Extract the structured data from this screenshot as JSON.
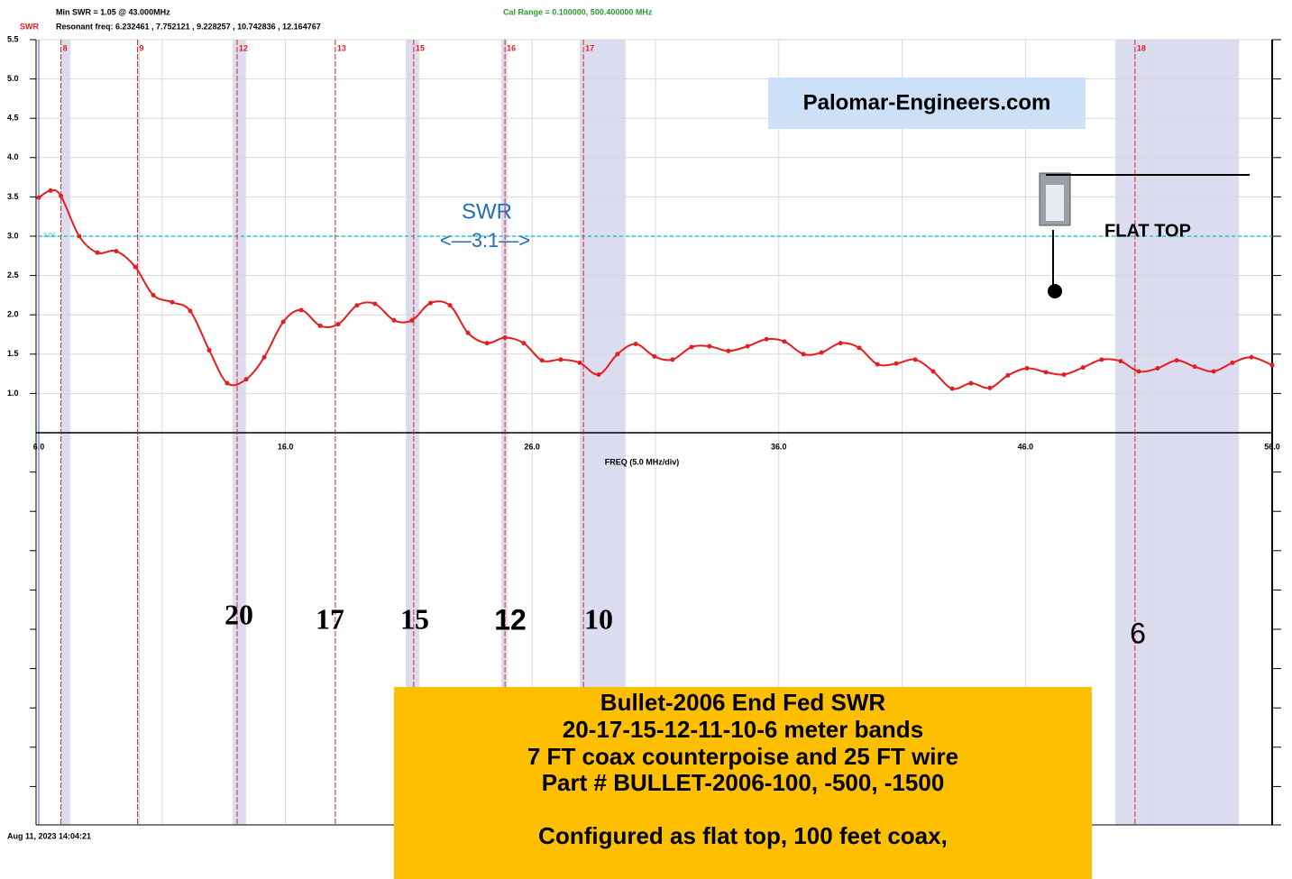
{
  "header": {
    "min_swr": "Min SWR =  1.05 @  43.000MHz",
    "resonant": "Resonant freq:  6.232461 , 7.752121 , 9.228257 , 10.742836 , 12.164767",
    "cal_range": "Cal Range = 0.100000,  500.400000 MHz",
    "timestamp": "Aug 11, 2023  14:04:21"
  },
  "chart_data": {
    "type": "line",
    "y_label": "SWR",
    "x_label": "FREQ (5.0 MHz/div)",
    "x": [
      6.0,
      6.48,
      6.9,
      7.64,
      8.38,
      9.14,
      9.91,
      10.64,
      11.41,
      12.14,
      12.91,
      13.64,
      14.41,
      15.14,
      15.91,
      16.64,
      17.41,
      18.14,
      18.9,
      19.63,
      20.4,
      21.13,
      21.88,
      22.67,
      23.4,
      24.17,
      24.9,
      25.66,
      26.4,
      27.16,
      27.93,
      28.7,
      29.46,
      30.2,
      30.96,
      31.69,
      32.46,
      33.19,
      33.96,
      34.73,
      35.5,
      36.23,
      37.0,
      37.73,
      38.5,
      39.26,
      40.0,
      40.76,
      41.53,
      42.26,
      43.03,
      43.79,
      44.56,
      45.29,
      46.06,
      46.83,
      47.56,
      48.33,
      49.09,
      49.86,
      50.59,
      51.36,
      52.13,
      52.86,
      53.63,
      54.39,
      55.16,
      56.0
    ],
    "values": [
      3.49,
      3.58,
      3.51,
      3.0,
      2.79,
      2.81,
      2.61,
      2.25,
      2.16,
      2.05,
      1.55,
      1.13,
      1.18,
      1.46,
      1.91,
      2.06,
      1.86,
      1.88,
      2.12,
      2.14,
      1.93,
      1.93,
      2.15,
      2.12,
      1.77,
      1.64,
      1.71,
      1.64,
      1.42,
      1.43,
      1.39,
      1.24,
      1.5,
      1.63,
      1.47,
      1.43,
      1.59,
      1.6,
      1.54,
      1.6,
      1.69,
      1.66,
      1.5,
      1.52,
      1.64,
      1.58,
      1.37,
      1.38,
      1.43,
      1.28,
      1.06,
      1.13,
      1.07,
      1.23,
      1.32,
      1.27,
      1.24,
      1.33,
      1.43,
      1.41,
      1.28,
      1.32,
      1.42,
      1.34,
      1.28,
      1.39,
      1.46,
      1.36
    ],
    "color": "#e41e1e",
    "xlim": [
      6,
      56
    ],
    "ylim": [
      0.5,
      5.5
    ],
    "xticks": [
      {
        "value": 6,
        "label": "6.0"
      },
      {
        "value": 16,
        "label": "16.0"
      },
      {
        "value": 26,
        "label": "26.0"
      },
      {
        "value": 36,
        "label": "36.0"
      },
      {
        "value": 46,
        "label": "46.0"
      },
      {
        "value": 56,
        "label": "56.0"
      }
    ],
    "x_minor_ticks": [
      11,
      21,
      31,
      41,
      51
    ],
    "yticks": [
      {
        "value": 1,
        "label": "1.0"
      },
      {
        "value": 1.5,
        "label": "1.5"
      },
      {
        "value": 2,
        "label": "2.0"
      },
      {
        "value": 2.5,
        "label": "2.5"
      },
      {
        "value": 3,
        "label": "3.0"
      },
      {
        "value": 3.5,
        "label": "3.5"
      },
      {
        "value": 4,
        "label": "4.0"
      },
      {
        "value": 4.5,
        "label": "4.5"
      },
      {
        "value": 5,
        "label": "5.0"
      },
      {
        "value": 5.5,
        "label": "5.5"
      }
    ],
    "grid": true,
    "reference_line": {
      "value": 3,
      "label": "3.00",
      "color": "#22c8d8"
    },
    "marker_color": "#e41e1e",
    "markers": [
      {
        "label": "8",
        "x": 6.9
      },
      {
        "label": "9",
        "x": 10.0
      },
      {
        "label": "12",
        "x": 14.04
      },
      {
        "label": "13",
        "x": 18.02
      },
      {
        "label": "15",
        "x": 21.2
      },
      {
        "label": "16",
        "x": 24.9
      },
      {
        "label": "17",
        "x": 28.08
      },
      {
        "label": "18",
        "x": 50.44
      }
    ],
    "band_color": "#dcdcf0",
    "bands": [
      [
        6.9,
        7.28
      ],
      [
        10.0,
        10.1
      ],
      [
        13.86,
        14.4
      ],
      [
        20.88,
        21.42
      ],
      [
        24.75,
        25.0
      ],
      [
        27.93,
        29.79
      ],
      [
        49.64,
        54.65
      ]
    ],
    "annotations": {
      "swr_text": "SWR",
      "ratio_text": "<—3:1—>",
      "logo": "Palomar-Engineers.com",
      "flat_top": "FLAT TOP"
    },
    "band_labels": [
      "20",
      "17",
      "15",
      "12",
      "10",
      "6"
    ]
  },
  "info_box": [
    "Bullet-2006 End Fed SWR",
    "20-17-15-12-11-10-6 meter bands",
    "7 FT coax counterpoise and 25 FT wire",
    "Part # BULLET-2006-100, -500, -1500",
    "Configured as flat top, 100 feet coax,"
  ]
}
